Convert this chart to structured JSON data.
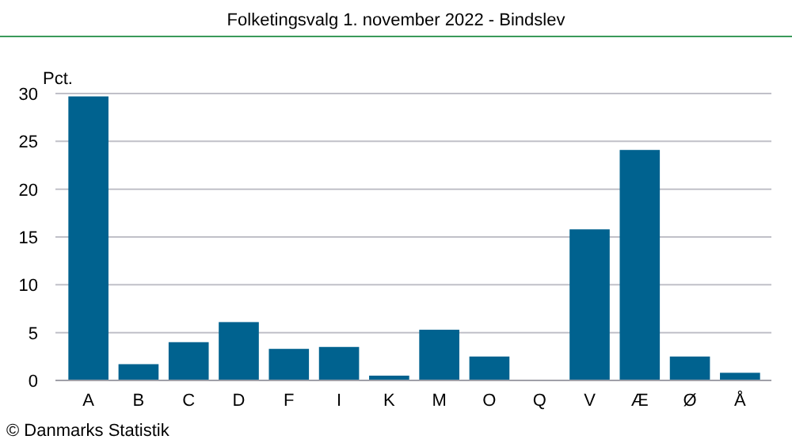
{
  "chart_data": {
    "type": "bar",
    "title": "Folketingsvalg 1. november 2022 - Bindslev",
    "ylabel": "Pct.",
    "categories": [
      "A",
      "B",
      "C",
      "D",
      "F",
      "I",
      "K",
      "M",
      "O",
      "Q",
      "V",
      "Æ",
      "Ø",
      "Å"
    ],
    "values": [
      29.7,
      1.7,
      4.0,
      6.1,
      3.3,
      3.5,
      0.5,
      5.3,
      2.5,
      0,
      15.8,
      24.1,
      2.5,
      0.8
    ],
    "color": "#00628f",
    "ylim": [
      0,
      30
    ],
    "yticks": [
      0,
      5,
      10,
      15,
      20,
      25,
      30
    ],
    "grid": "y",
    "annotations": [
      "© Danmarks Statistik"
    ]
  }
}
